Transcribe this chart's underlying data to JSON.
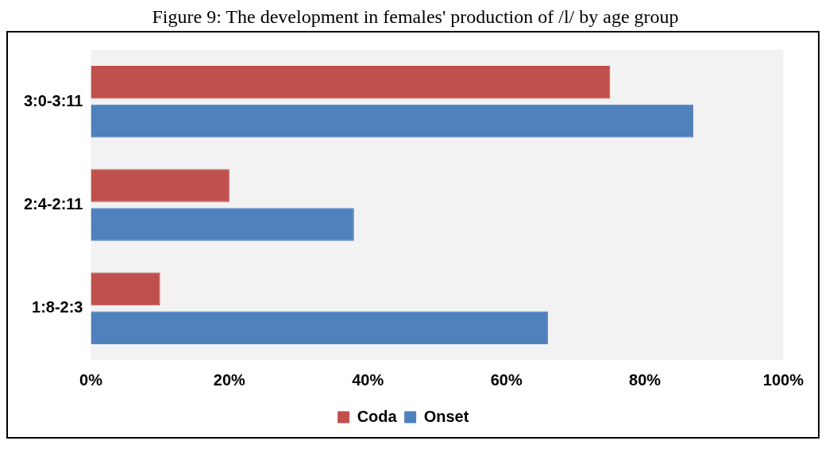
{
  "chart_data": {
    "type": "bar",
    "orientation": "horizontal",
    "title": "Figure 9: The development in females' production of /l/ by age group",
    "categories": [
      "3:0-3:11",
      "2:4-2:11",
      "1:8-2:3"
    ],
    "series": [
      {
        "name": "Coda",
        "color": "#c0504d",
        "values": [
          75,
          20,
          10
        ]
      },
      {
        "name": "Onset",
        "color": "#4f81bd",
        "values": [
          87,
          38,
          66
        ]
      }
    ],
    "xlim": [
      0,
      100
    ],
    "xticks": [
      {
        "value": 0,
        "label": "0%"
      },
      {
        "value": 20,
        "label": "20%"
      },
      {
        "value": 40,
        "label": "40%"
      },
      {
        "value": 60,
        "label": "60%"
      },
      {
        "value": 80,
        "label": "80%"
      },
      {
        "value": 100,
        "label": "100%"
      }
    ],
    "grid": false,
    "legend": "bottom"
  }
}
